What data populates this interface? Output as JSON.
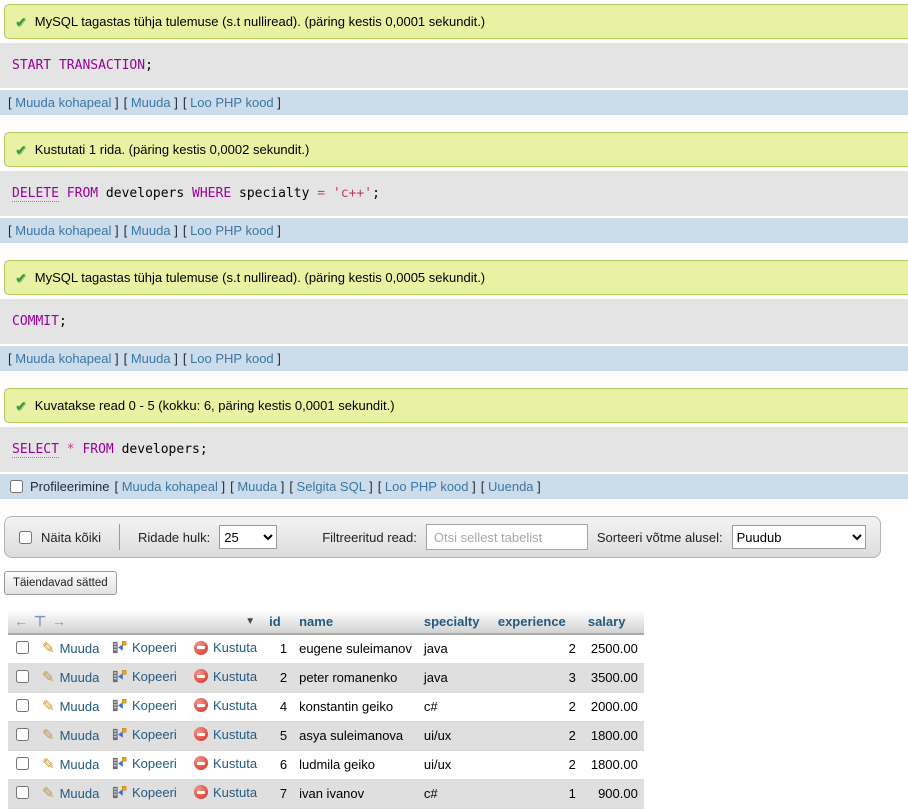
{
  "query_groups": [
    {
      "status": "MySQL tagastas tühja tulemuse (s.t nulliread). (päring kestis 0,0001 sekundit.)",
      "sql_tokens": [
        [
          "START TRANSACTION",
          "kw"
        ],
        [
          ";",
          "pl"
        ]
      ],
      "links": [
        "Muuda kohapeal",
        "Muuda",
        "Loo PHP kood"
      ],
      "profiling": null
    },
    {
      "status": "Kustutati 1 rida. (päring kestis 0,0002 sekundit.)",
      "sql_tokens": [
        [
          "DELETE",
          "kwu"
        ],
        [
          " ",
          "pl"
        ],
        [
          "FROM",
          "kw"
        ],
        [
          " developers ",
          "pl"
        ],
        [
          "WHERE",
          "kw"
        ],
        [
          " specialty ",
          "pl"
        ],
        [
          "=",
          "op"
        ],
        [
          " ",
          "pl"
        ],
        [
          "'c++'",
          "str"
        ],
        [
          ";",
          "pl"
        ]
      ],
      "links": [
        "Muuda kohapeal",
        "Muuda",
        "Loo PHP kood"
      ],
      "profiling": null
    },
    {
      "status": "MySQL tagastas tühja tulemuse (s.t nulliread). (päring kestis 0,0005 sekundit.)",
      "sql_tokens": [
        [
          "COMMIT",
          "kw"
        ],
        [
          ";",
          "pl"
        ]
      ],
      "links": [
        "Muuda kohapeal",
        "Muuda",
        "Loo PHP kood"
      ],
      "profiling": null
    },
    {
      "status": "Kuvatakse read 0 - 5 (kokku: 6, päring kestis 0,0001 sekundit.)",
      "sql_tokens": [
        [
          "SELECT",
          "kwu"
        ],
        [
          " ",
          "pl"
        ],
        [
          "*",
          "op"
        ],
        [
          " ",
          "pl"
        ],
        [
          "FROM",
          "kw"
        ],
        [
          " developers",
          "pl"
        ],
        [
          ";",
          "pl"
        ]
      ],
      "links": [
        "Muuda kohapeal",
        "Muuda",
        "Selgita SQL",
        "Loo PHP kood",
        "Uuenda"
      ],
      "profiling": {
        "label": "Profileerimine",
        "checked": false
      }
    }
  ],
  "filter_bar": {
    "show_all_label": "Näita kõiki",
    "rows_label": "Ridade hulk:",
    "rows_value": "25",
    "filter_label": "Filtreeritud read:",
    "filter_placeholder": "Otsi sellest tabelist",
    "sort_label": "Sorteeri võtme alusel:",
    "sort_value": "Puudub"
  },
  "extra_settings_button": "Täiendavad sätted",
  "table": {
    "nav_arrows": "← ⊤ →",
    "sort_caret": "▼",
    "action_labels": {
      "edit": "Muuda",
      "copy": "Kopeeri",
      "delete": "Kustuta"
    },
    "columns": [
      "id",
      "name",
      "specialty",
      "experience",
      "salary"
    ],
    "rows": [
      {
        "id": "1",
        "name": "eugene suleimanov",
        "specialty": "java",
        "experience": "2",
        "salary": "2500.00"
      },
      {
        "id": "2",
        "name": "peter romanenko",
        "specialty": "java",
        "experience": "3",
        "salary": "3500.00"
      },
      {
        "id": "4",
        "name": "konstantin geiko",
        "specialty": "c#",
        "experience": "2",
        "salary": "2000.00"
      },
      {
        "id": "5",
        "name": "asya suleimanova",
        "specialty": "ui/ux",
        "experience": "2",
        "salary": "1800.00"
      },
      {
        "id": "6",
        "name": "ludmila geiko",
        "specialty": "ui/ux",
        "experience": "2",
        "salary": "1800.00"
      },
      {
        "id": "7",
        "name": "ivan ivanov",
        "specialty": "c#",
        "experience": "1",
        "salary": "900.00"
      }
    ]
  },
  "colors": {
    "success_bg": "#e9f1a2",
    "success_border": "#b4c95f",
    "sql_bg": "#e4e4e4",
    "links_bg": "#ccdcea",
    "link": "#3a76a5",
    "header_link": "#235a81",
    "keyword": "#990099",
    "operator": "#cc3d8f",
    "string": "#c13b5f",
    "row_alt": "#dfdfdf"
  }
}
